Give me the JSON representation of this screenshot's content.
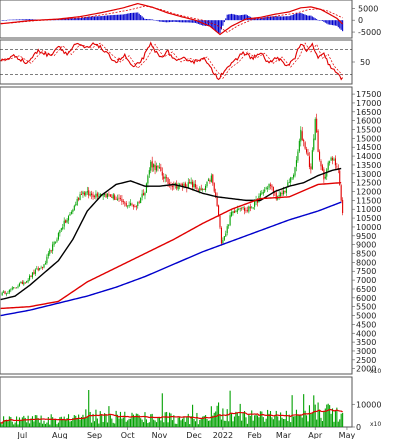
{
  "chart_data": [
    {
      "panel": "macd",
      "type": "bar",
      "y_ticks": [
        "5000",
        "0",
        "-5000"
      ],
      "y_tick_values": [
        5000,
        0,
        -5000
      ],
      "ylim": [
        -7500,
        8500
      ],
      "colors": {
        "line": "#e00000",
        "signal": "#e00000",
        "hist": "#0000cc"
      }
    },
    {
      "panel": "rsi",
      "type": "line",
      "y_ticks": [
        "50"
      ],
      "y_tick_values": [
        50
      ],
      "reference_lines": [
        30,
        70
      ],
      "ylim": [
        15,
        85
      ],
      "colors": {
        "line": "#e00000"
      }
    },
    {
      "panel": "price",
      "type": "line",
      "subtype": "candlestick",
      "y_ticks": [
        "17500",
        "17000",
        "16500",
        "16000",
        "15500",
        "15000",
        "14500",
        "14000",
        "13500",
        "13000",
        "12500",
        "12000",
        "11500",
        "11000",
        "10500",
        "10000",
        "9500",
        "9000",
        "8500",
        "8000",
        "7500",
        "7000",
        "6500",
        "6000",
        "5500",
        "5000",
        "4500",
        "4000",
        "3500",
        "3000",
        "2500",
        "2000"
      ],
      "ylim": [
        1700,
        17900
      ],
      "exponent_label": "x10",
      "series": [
        {
          "name": "",
          "color": "#000000",
          "role": "ma-short",
          "points": [
            [
              0,
              5900
            ],
            [
              10,
              6100
            ],
            [
              20,
              6700
            ],
            [
              30,
              7400
            ],
            [
              40,
              8100
            ],
            [
              50,
              9300
            ],
            [
              60,
              10900
            ],
            [
              70,
              11800
            ],
            [
              80,
              12400
            ],
            [
              90,
              12600
            ],
            [
              100,
              12300
            ],
            [
              110,
              12300
            ],
            [
              120,
              12400
            ],
            [
              130,
              12200
            ],
            [
              140,
              11900
            ],
            [
              150,
              11700
            ],
            [
              160,
              11600
            ],
            [
              170,
              11500
            ],
            [
              180,
              11500
            ],
            [
              190,
              12000
            ],
            [
              200,
              12300
            ],
            [
              210,
              12500
            ],
            [
              220,
              12900
            ],
            [
              230,
              13200
            ],
            [
              236,
              13300
            ]
          ]
        },
        {
          "name": "",
          "color": "#e00000",
          "role": "ma-mid",
          "points": [
            [
              0,
              5400
            ],
            [
              20,
              5500
            ],
            [
              40,
              5800
            ],
            [
              60,
              6900
            ],
            [
              80,
              7700
            ],
            [
              100,
              8500
            ],
            [
              120,
              9300
            ],
            [
              140,
              10200
            ],
            [
              160,
              11000
            ],
            [
              180,
              11600
            ],
            [
              200,
              11700
            ],
            [
              220,
              12400
            ],
            [
              236,
              12500
            ]
          ]
        },
        {
          "name": "",
          "color": "#0000cc",
          "role": "ma-long",
          "points": [
            [
              0,
              5000
            ],
            [
              20,
              5300
            ],
            [
              40,
              5700
            ],
            [
              60,
              6100
            ],
            [
              80,
              6600
            ],
            [
              100,
              7200
            ],
            [
              120,
              7900
            ],
            [
              140,
              8600
            ],
            [
              160,
              9200
            ],
            [
              180,
              9800
            ],
            [
              200,
              10400
            ],
            [
              220,
              10900
            ],
            [
              236,
              11400
            ]
          ]
        }
      ],
      "close_path": [
        [
          0,
          6200
        ],
        [
          6,
          6400
        ],
        [
          12,
          6700
        ],
        [
          18,
          7000
        ],
        [
          24,
          7500
        ],
        [
          30,
          7800
        ],
        [
          34,
          8600
        ],
        [
          38,
          9200
        ],
        [
          42,
          10000
        ],
        [
          46,
          10400
        ],
        [
          50,
          11000
        ],
        [
          56,
          12000
        ],
        [
          62,
          11800
        ],
        [
          70,
          11900
        ],
        [
          78,
          11700
        ],
        [
          86,
          11300
        ],
        [
          94,
          11200
        ],
        [
          100,
          12100
        ],
        [
          104,
          13600
        ],
        [
          110,
          13200
        ],
        [
          116,
          12500
        ],
        [
          124,
          12300
        ],
        [
          132,
          12400
        ],
        [
          140,
          12000
        ],
        [
          146,
          12800
        ],
        [
          150,
          11200
        ],
        [
          153,
          9200
        ],
        [
          156,
          9700
        ],
        [
          160,
          10800
        ],
        [
          166,
          11200
        ],
        [
          170,
          10900
        ],
        [
          176,
          11300
        ],
        [
          182,
          12000
        ],
        [
          186,
          12400
        ],
        [
          192,
          11600
        ],
        [
          198,
          12200
        ],
        [
          204,
          13200
        ],
        [
          208,
          15300
        ],
        [
          212,
          14300
        ],
        [
          215,
          13200
        ],
        [
          218,
          16100
        ],
        [
          221,
          13600
        ],
        [
          224,
          12800
        ],
        [
          228,
          13700
        ],
        [
          231,
          13900
        ],
        [
          234,
          13200
        ],
        [
          235,
          12300
        ],
        [
          236,
          11400
        ],
        [
          237,
          10900
        ]
      ],
      "colors": {
        "up": "#00a000",
        "down": "#e00000"
      }
    },
    {
      "panel": "volume",
      "type": "bar",
      "y_ticks": [
        "10000",
        "0"
      ],
      "y_tick_values": [
        10000,
        0
      ],
      "ylim": [
        0,
        22000
      ],
      "exponent_label": "x10",
      "colors": {
        "bar": "#00a000",
        "ma": "#e00000"
      }
    }
  ],
  "x_axis": {
    "labels": [
      "Jul",
      "Aug",
      "Sep",
      "Oct",
      "Nov",
      "Dec",
      "2022",
      "Feb",
      "Mar",
      "Apr",
      "May"
    ],
    "bar_index": [
      15,
      41,
      65,
      88,
      110,
      134,
      154,
      176,
      196,
      218,
      240
    ],
    "bar_count": 244
  },
  "colors": {
    "background": "#ffffff",
    "frame": "#555555",
    "grid": "#cccccc",
    "text": "#222222"
  }
}
